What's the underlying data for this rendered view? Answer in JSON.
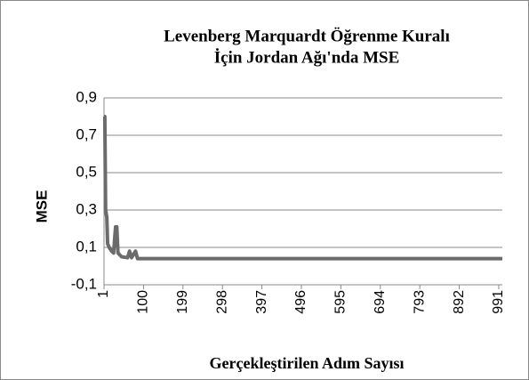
{
  "chart_data": {
    "type": "line",
    "title": [
      "Levenberg Marquardt Öğrenme Kuralı",
      "İçin Jordan Ağı'nda MSE"
    ],
    "xlabel": "Gerçekleştirilen Adım Sayısı",
    "ylabel": "MSE",
    "x": [
      1,
      3,
      5,
      8,
      10,
      14,
      20,
      25,
      30,
      33,
      36,
      45,
      60,
      65,
      70,
      80,
      85,
      100,
      1000
    ],
    "series": [
      {
        "name": "MSE",
        "color": "#6b6b6b",
        "values": [
          0.8,
          0.8,
          0.3,
          0.26,
          0.12,
          0.1,
          0.08,
          0.07,
          0.21,
          0.21,
          0.07,
          0.05,
          0.045,
          0.08,
          0.045,
          0.08,
          0.04,
          0.04,
          0.04
        ]
      }
    ],
    "xlim": [
      1,
      1000
    ],
    "xticks": [
      1,
      100,
      199,
      298,
      397,
      496,
      595,
      694,
      793,
      892,
      991
    ],
    "ylim": [
      -0.1,
      0.9
    ],
    "yticks": [
      {
        "value": -0.1,
        "label": "-0,1"
      },
      {
        "value": 0.1,
        "label": "0,1"
      },
      {
        "value": 0.3,
        "label": "0,3"
      },
      {
        "value": 0.5,
        "label": "0,5"
      },
      {
        "value": 0.7,
        "label": "0,7"
      },
      {
        "value": 0.9,
        "label": "0,9"
      }
    ],
    "grid": true
  }
}
